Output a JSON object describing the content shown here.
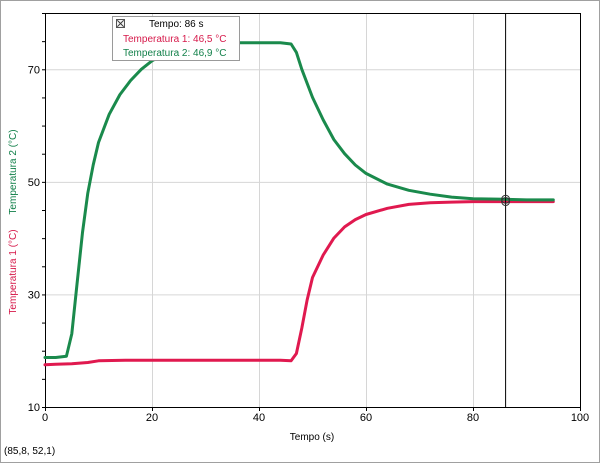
{
  "chart_data": {
    "type": "line",
    "xlabel": "Tempo (s)",
    "ylabel_1": "Temperatura 1 (°C)",
    "ylabel_2": "Temperatura 2 (°C)",
    "xlim": [
      0,
      100
    ],
    "ylim": [
      10,
      80
    ],
    "x_ticks": [
      0,
      20,
      40,
      60,
      80,
      100
    ],
    "y_ticks": [
      10,
      30,
      50,
      70
    ],
    "grid": true,
    "cursor_x": 86,
    "series": [
      {
        "name": "Temperatura 1",
        "color": "#e0194f",
        "points": [
          [
            0,
            17.5
          ],
          [
            2,
            17.6
          ],
          [
            5,
            17.7
          ],
          [
            8,
            17.9
          ],
          [
            10,
            18.2
          ],
          [
            15,
            18.3
          ],
          [
            20,
            18.3
          ],
          [
            30,
            18.3
          ],
          [
            40,
            18.3
          ],
          [
            44,
            18.3
          ],
          [
            46,
            18.2
          ],
          [
            47,
            19.5
          ],
          [
            48,
            24
          ],
          [
            49,
            29
          ],
          [
            50,
            33
          ],
          [
            52,
            37
          ],
          [
            54,
            40
          ],
          [
            56,
            42
          ],
          [
            58,
            43.3
          ],
          [
            60,
            44.2
          ],
          [
            64,
            45.3
          ],
          [
            68,
            46
          ],
          [
            72,
            46.3
          ],
          [
            76,
            46.4
          ],
          [
            80,
            46.5
          ],
          [
            86,
            46.5
          ],
          [
            90,
            46.5
          ],
          [
            95,
            46.5
          ]
        ]
      },
      {
        "name": "Temperatura 2",
        "color": "#1a8a4c",
        "points": [
          [
            0,
            18.8
          ],
          [
            2,
            18.8
          ],
          [
            4,
            19
          ],
          [
            5,
            23
          ],
          [
            6,
            32
          ],
          [
            7,
            41
          ],
          [
            8,
            48
          ],
          [
            9,
            53
          ],
          [
            10,
            57
          ],
          [
            12,
            62
          ],
          [
            14,
            65.5
          ],
          [
            16,
            68
          ],
          [
            18,
            70
          ],
          [
            20,
            71.5
          ],
          [
            22,
            72.5
          ],
          [
            25,
            73.5
          ],
          [
            28,
            74.2
          ],
          [
            32,
            74.6
          ],
          [
            36,
            74.7
          ],
          [
            40,
            74.7
          ],
          [
            44,
            74.7
          ],
          [
            46,
            74.5
          ],
          [
            47,
            73
          ],
          [
            48,
            70
          ],
          [
            50,
            65
          ],
          [
            52,
            61
          ],
          [
            54,
            57.5
          ],
          [
            56,
            55
          ],
          [
            58,
            53
          ],
          [
            60,
            51.5
          ],
          [
            64,
            49.6
          ],
          [
            68,
            48.5
          ],
          [
            72,
            47.8
          ],
          [
            76,
            47.3
          ],
          [
            80,
            47
          ],
          [
            86,
            46.9
          ],
          [
            90,
            46.8
          ],
          [
            95,
            46.8
          ]
        ]
      }
    ]
  },
  "tooltip": {
    "time": "Tempo: 86 s",
    "t1": "Temperatura 1: 46,5 °C",
    "t2": "Temperatura 2: 46,9 °C"
  },
  "readout": "(85,8, 52,1)"
}
